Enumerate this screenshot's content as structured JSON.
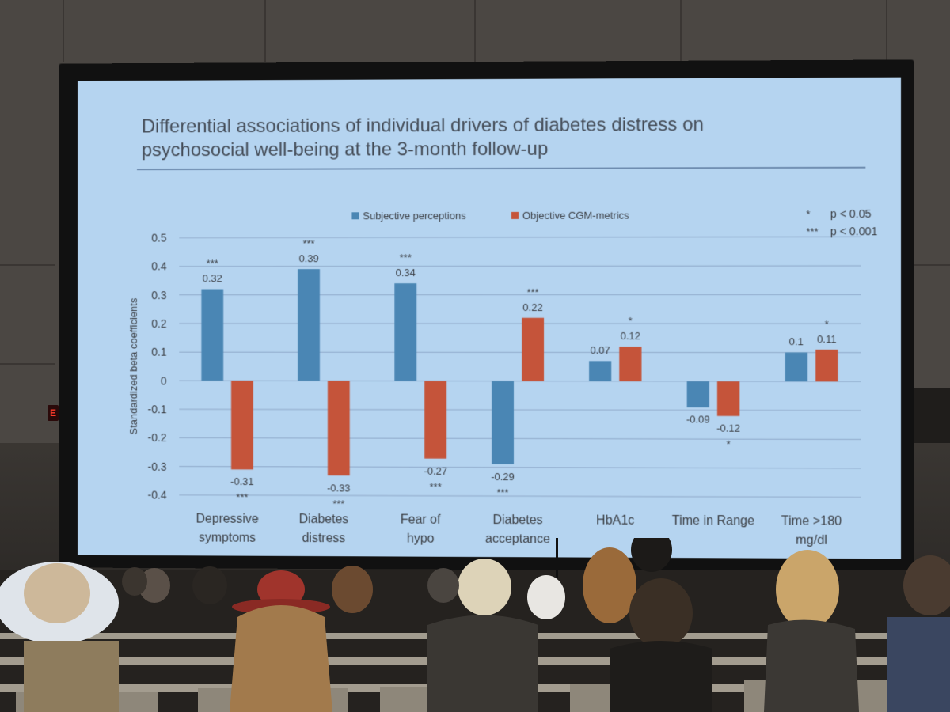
{
  "slide": {
    "title_line1": "Differential associations of individual drivers of diabetes distress on",
    "title_line2": "psychosocial well-being at the 3-month follow-up"
  },
  "significance_key": [
    {
      "marker": "*",
      "label": "p < 0.05"
    },
    {
      "marker": "***",
      "label": "p < 0.001"
    }
  ],
  "colors": {
    "slide_background": "#b5d4f0",
    "subjective": "#4a86b4",
    "objective": "#c5543a",
    "gridline": "#8fa9c9",
    "text": "#3b3f45"
  },
  "chart_data": {
    "type": "bar",
    "title": "",
    "ylabel": "Standardized beta coefficients",
    "xlabel": "",
    "ylim": [
      -0.4,
      0.5
    ],
    "yticks": [
      "0.5",
      "0.4",
      "0.3",
      "0.2",
      "0.1",
      "0",
      "-0.1",
      "-0.2",
      "-0.3",
      "-0.4"
    ],
    "ytick_values": [
      0.5,
      0.4,
      0.3,
      0.2,
      0.1,
      0,
      -0.1,
      -0.2,
      -0.3,
      -0.4
    ],
    "grid": true,
    "legend_position": "top",
    "categories": [
      [
        "Depressive",
        "symptoms"
      ],
      [
        "Diabetes",
        "distress"
      ],
      [
        "Fear of",
        "hypo"
      ],
      [
        "Diabetes",
        "acceptance"
      ],
      [
        "HbA1c"
      ],
      [
        "Time in Range"
      ],
      [
        "Time >180",
        "mg/dl"
      ]
    ],
    "series": [
      {
        "name": "Subjective perceptions",
        "values": [
          0.32,
          0.39,
          0.34,
          -0.29,
          0.07,
          -0.09,
          0.1
        ],
        "labels": [
          "0.32",
          "0.39",
          "0.34",
          "-0.29",
          "0.07",
          "-0.09",
          "0.1"
        ],
        "significance": [
          "***",
          "***",
          "***",
          "***",
          "",
          "",
          ""
        ]
      },
      {
        "name": "Objective CGM-metrics",
        "values": [
          -0.31,
          -0.33,
          -0.27,
          0.22,
          0.12,
          -0.12,
          0.11
        ],
        "labels": [
          "-0.31",
          "-0.33",
          "-0.27",
          "0.22",
          "0.12",
          "-0.12",
          "0.11"
        ],
        "significance": [
          "***",
          "***",
          "***",
          "***",
          "*",
          "*",
          "*"
        ]
      }
    ]
  }
}
